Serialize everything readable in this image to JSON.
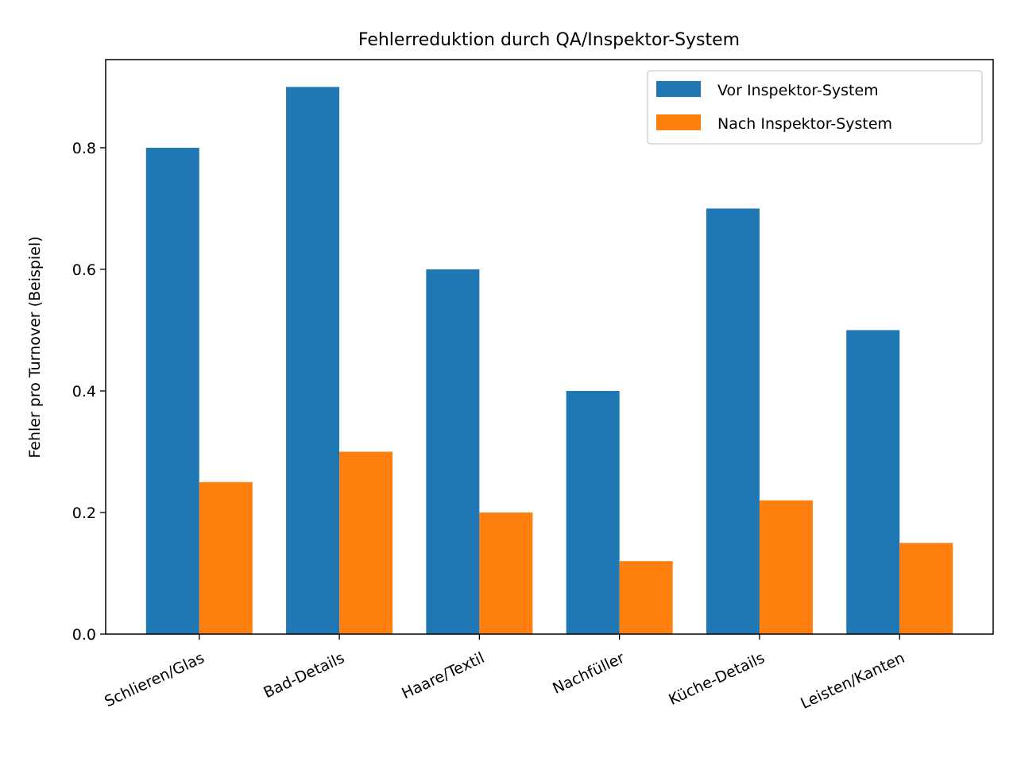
{
  "chart_data": {
    "type": "bar",
    "title": "Fehlerreduktion durch QA/Inspektor-System",
    "xlabel": "",
    "ylabel": "Fehler pro Turnover (Beispiel)",
    "categories": [
      "Schlieren/Glas",
      "Bad-Details",
      "Haare/Textil",
      "Nachfüller",
      "Küche-Details",
      "Leisten/Kanten"
    ],
    "series": [
      {
        "name": "Vor Inspektor-System",
        "color": "#1f77b4",
        "values": [
          0.8,
          0.9,
          0.6,
          0.4,
          0.7,
          0.5
        ]
      },
      {
        "name": "Nach Inspektor-System",
        "color": "#ff7f0e",
        "values": [
          0.25,
          0.3,
          0.2,
          0.12,
          0.22,
          0.15
        ]
      }
    ],
    "ylim": [
      0,
      0.945
    ],
    "yticks": [
      "0.0",
      "0.2",
      "0.4",
      "0.6",
      "0.8"
    ],
    "grid": false,
    "legend_position": "top-right"
  }
}
